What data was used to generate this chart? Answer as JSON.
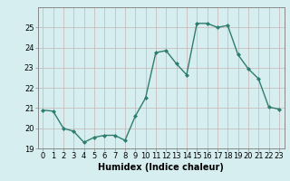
{
  "xlabel": "Humidex (Indice chaleur)",
  "x": [
    0,
    1,
    2,
    3,
    4,
    5,
    6,
    7,
    8,
    9,
    10,
    11,
    12,
    13,
    14,
    15,
    16,
    17,
    18,
    19,
    20,
    21,
    22,
    23
  ],
  "y": [
    20.9,
    20.85,
    20.0,
    19.85,
    19.3,
    19.55,
    19.65,
    19.65,
    19.4,
    20.6,
    21.5,
    23.75,
    23.85,
    23.2,
    22.65,
    25.2,
    25.2,
    25.0,
    25.1,
    23.65,
    22.95,
    22.45,
    21.05,
    20.95
  ],
  "line_color": "#2e7d6e",
  "marker": "D",
  "marker_size": 2.0,
  "background_color": "#d6eef0",
  "grid_major_color": "#c8b4b4",
  "grid_minor_color": "#ddd0d0",
  "ylim": [
    19,
    26
  ],
  "yticks": [
    19,
    20,
    21,
    22,
    23,
    24,
    25
  ],
  "xlim": [
    -0.5,
    23.5
  ],
  "xticks": [
    0,
    1,
    2,
    3,
    4,
    5,
    6,
    7,
    8,
    9,
    10,
    11,
    12,
    13,
    14,
    15,
    16,
    17,
    18,
    19,
    20,
    21,
    22,
    23
  ],
  "linewidth": 1.0,
  "xlabel_fontsize": 7,
  "tick_fontsize": 6,
  "spine_color": "#888888"
}
